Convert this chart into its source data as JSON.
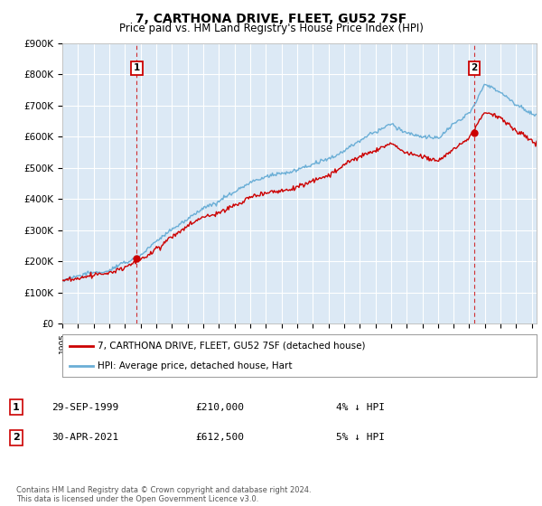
{
  "title": "7, CARTHONA DRIVE, FLEET, GU52 7SF",
  "subtitle": "Price paid vs. HM Land Registry's House Price Index (HPI)",
  "ylim": [
    0,
    900000
  ],
  "xlim_start": 1995.0,
  "xlim_end": 2025.3,
  "background_color": "#ffffff",
  "chart_bg_color": "#dce9f5",
  "grid_color": "#ffffff",
  "hpi_color": "#6aaed6",
  "price_color": "#cc0000",
  "legend_line1": "7, CARTHONA DRIVE, FLEET, GU52 7SF (detached house)",
  "legend_line2": "HPI: Average price, detached house, Hart",
  "footnote": "Contains HM Land Registry data © Crown copyright and database right 2024.\nThis data is licensed under the Open Government Licence v3.0.",
  "sale1_x": 1999.75,
  "sale1_y": 210000,
  "sale2_x": 2021.33,
  "sale2_y": 612500,
  "date1": "29-SEP-1999",
  "price1": "£210,000",
  "note1": "4% ↓ HPI",
  "date2": "30-APR-2021",
  "price2": "£612,500",
  "note2": "5% ↓ HPI"
}
